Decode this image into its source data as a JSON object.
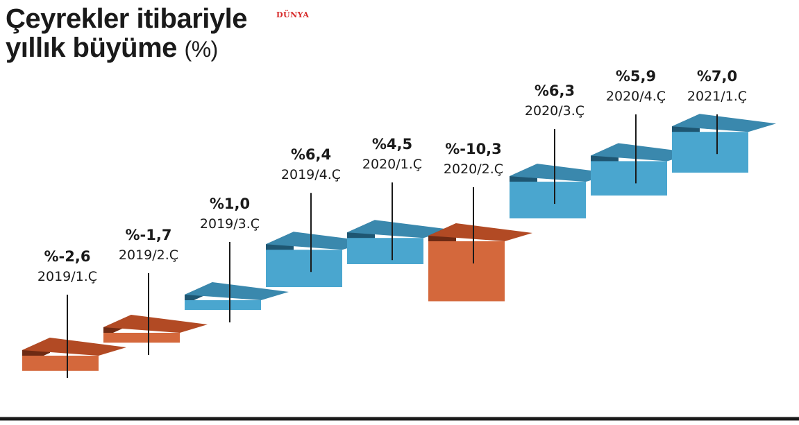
{
  "header": {
    "title_line1": "Çeyrekler itibariyle",
    "title_line2": "yıllık büyüme",
    "title_unit": "(%)",
    "brand": "DÜNYA"
  },
  "colors": {
    "positive_top": "#3a88ad",
    "positive_front": "#4aa6cf",
    "positive_side": "#1e5672",
    "negative_top": "#b24a24",
    "negative_front": "#d4683c",
    "negative_side": "#6e2a13",
    "baseline": "#1a1a1a"
  },
  "chart_data": {
    "type": "bar",
    "categories": [
      "2019/1.Ç",
      "2019/2.Ç",
      "2019/3.Ç",
      "2019/4.Ç",
      "2020/1.Ç",
      "2020/2.Ç",
      "2020/3.Ç",
      "2020/4.Ç",
      "2021/1.Ç"
    ],
    "values": [
      -2.6,
      -1.7,
      1.0,
      6.4,
      4.5,
      -10.3,
      6.3,
      5.9,
      7.0
    ],
    "value_labels": [
      "%-2,6",
      "%-1,7",
      "%1,0",
      "%6,4",
      "%4,5",
      "%-10,3",
      "%6,3",
      "%5,9",
      "%7,0"
    ],
    "title": "Çeyrekler itibariyle yıllık büyüme (%)",
    "style": "3d-bar"
  }
}
